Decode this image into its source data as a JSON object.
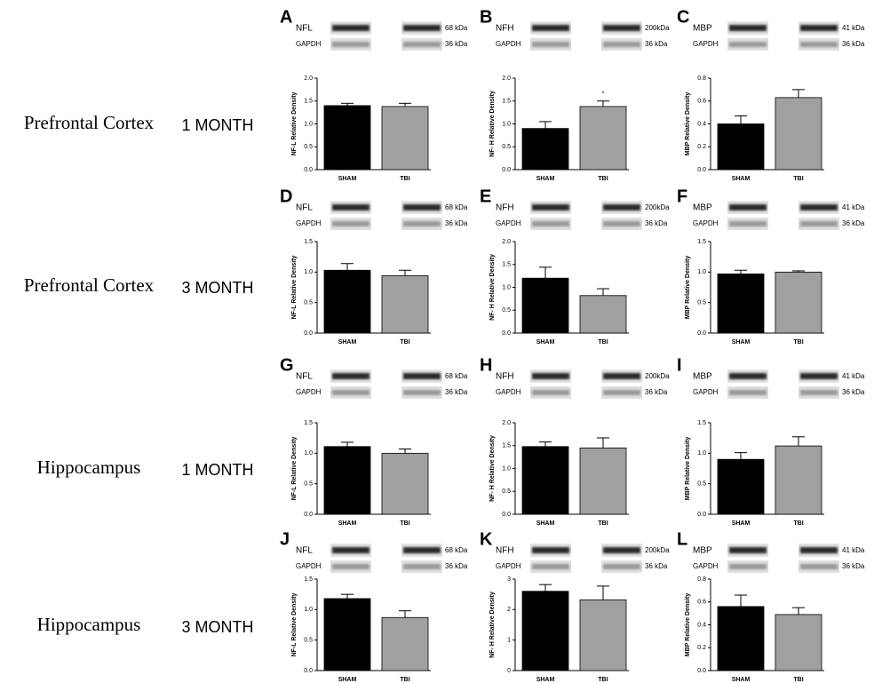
{
  "row_labels": [
    {
      "region": "Prefrontal Cortex",
      "time": "1 MONTH"
    },
    {
      "region": "Prefrontal Cortex",
      "time": "3 MONTH"
    },
    {
      "region": "Hippocampus",
      "time": "1 MONTH"
    },
    {
      "region": "Hippocampus",
      "time": "3 MONTH"
    }
  ],
  "chart_data": [
    {
      "type": "bar",
      "panel": "A",
      "blot": {
        "protein": "NFL",
        "protein_size": "68 kDa",
        "control": "GAPDH",
        "control_size": "36 kDa"
      },
      "ylabel": "NF-L Relative Density",
      "categories": [
        "SHAM",
        "TBI"
      ],
      "values": [
        1.4,
        1.38
      ],
      "errors": [
        0.05,
        0.07
      ],
      "colors": [
        "#000000",
        "#a0a0a0"
      ],
      "ylim": [
        0,
        2
      ],
      "yticks": [
        {
          "value": 0,
          "label": "0.0"
        },
        {
          "value": 0.5,
          "label": "0.5"
        },
        {
          "value": 1,
          "label": "1.0"
        },
        {
          "value": 1.5,
          "label": "1.5"
        },
        {
          "value": 2,
          "label": "2.0"
        }
      ]
    },
    {
      "type": "bar",
      "panel": "B",
      "blot": {
        "protein": "NFH",
        "protein_size": "200kDa",
        "control": "GAPDH",
        "control_size": "36 kDa"
      },
      "ylabel": "NF- H Relative Density",
      "categories": [
        "SHAM",
        "TBI"
      ],
      "values": [
        0.9,
        1.38
      ],
      "errors": [
        0.15,
        0.12
      ],
      "colors": [
        "#000000",
        "#a0a0a0"
      ],
      "significance": [
        null,
        "*"
      ],
      "ylim": [
        0,
        2
      ],
      "yticks": [
        {
          "value": 0,
          "label": "0.0"
        },
        {
          "value": 0.5,
          "label": "0.5"
        },
        {
          "value": 1,
          "label": "1.0"
        },
        {
          "value": 1.5,
          "label": "1.5"
        },
        {
          "value": 2,
          "label": "2.0"
        }
      ]
    },
    {
      "type": "bar",
      "panel": "C",
      "blot": {
        "protein": "MBP",
        "protein_size": "41 kDa",
        "control": "GAPDH",
        "control_size": "36 kDa"
      },
      "ylabel": "MBP Relative Density",
      "categories": [
        "SHAM",
        "TBI"
      ],
      "values": [
        0.4,
        0.63
      ],
      "errors": [
        0.07,
        0.07
      ],
      "colors": [
        "#000000",
        "#a0a0a0"
      ],
      "ylim": [
        0,
        0.8
      ],
      "yticks": [
        {
          "value": 0,
          "label": "0.0"
        },
        {
          "value": 0.2,
          "label": "0.2"
        },
        {
          "value": 0.4,
          "label": "0.4"
        },
        {
          "value": 0.6,
          "label": "0.6"
        },
        {
          "value": 0.8,
          "label": "0.8"
        }
      ]
    },
    {
      "type": "bar",
      "panel": "D",
      "blot": {
        "protein": "NFL",
        "protein_size": "68 kDa",
        "control": "GAPDH",
        "control_size": "36 kDa"
      },
      "ylabel": "NF-L Relative Density",
      "categories": [
        "SHAM",
        "TBI"
      ],
      "values": [
        1.03,
        0.94
      ],
      "errors": [
        0.11,
        0.09
      ],
      "colors": [
        "#000000",
        "#a0a0a0"
      ],
      "ylim": [
        0,
        1.5
      ],
      "yticks": [
        {
          "value": 0,
          "label": "0.0"
        },
        {
          "value": 0.5,
          "label": "0.5"
        },
        {
          "value": 1,
          "label": "1.0"
        },
        {
          "value": 1.5,
          "label": "1.5"
        }
      ]
    },
    {
      "type": "bar",
      "panel": "E",
      "blot": {
        "protein": "NFH",
        "protein_size": "200kDa",
        "control": "GAPDH",
        "control_size": "36 kDa"
      },
      "ylabel": "NF- H Relative Density",
      "categories": [
        "SHAM",
        "TBI"
      ],
      "values": [
        1.2,
        0.82
      ],
      "errors": [
        0.24,
        0.15
      ],
      "colors": [
        "#000000",
        "#a0a0a0"
      ],
      "ylim": [
        0,
        2
      ],
      "yticks": [
        {
          "value": 0,
          "label": "0.0"
        },
        {
          "value": 0.5,
          "label": "0.5"
        },
        {
          "value": 1,
          "label": "1.0"
        },
        {
          "value": 1.5,
          "label": "1.5"
        },
        {
          "value": 2,
          "label": "2.0"
        }
      ]
    },
    {
      "type": "bar",
      "panel": "F",
      "blot": {
        "protein": "MBP",
        "protein_size": "41 kDa",
        "control": "GAPDH",
        "control_size": "36 kDa"
      },
      "ylabel": "MBP Relative Density",
      "categories": [
        "SHAM",
        "TBI"
      ],
      "values": [
        0.97,
        1.0
      ],
      "errors": [
        0.06,
        0.02
      ],
      "colors": [
        "#000000",
        "#a0a0a0"
      ],
      "ylim": [
        0,
        1.5
      ],
      "yticks": [
        {
          "value": 0,
          "label": "0.0"
        },
        {
          "value": 0.5,
          "label": "0.5"
        },
        {
          "value": 1,
          "label": "1.0"
        },
        {
          "value": 1.5,
          "label": "1.5"
        }
      ]
    },
    {
      "type": "bar",
      "panel": "G",
      "blot": {
        "protein": "NFL",
        "protein_size": "68 kDa",
        "control": "GAPDH",
        "control_size": "36 kDa"
      },
      "ylabel": "NF-L Relative Density",
      "categories": [
        "SHAM",
        "TBI"
      ],
      "values": [
        1.11,
        1.0
      ],
      "errors": [
        0.07,
        0.07
      ],
      "colors": [
        "#000000",
        "#a0a0a0"
      ],
      "ylim": [
        0,
        1.5
      ],
      "yticks": [
        {
          "value": 0,
          "label": "0.0"
        },
        {
          "value": 0.5,
          "label": "0.5"
        },
        {
          "value": 1,
          "label": "1.0"
        },
        {
          "value": 1.5,
          "label": "1.5"
        }
      ]
    },
    {
      "type": "bar",
      "panel": "H",
      "blot": {
        "protein": "NFH",
        "protein_size": "200kDa",
        "control": "GAPDH",
        "control_size": "36 kDa"
      },
      "ylabel": "NF- H Relative Density",
      "categories": [
        "SHAM",
        "TBI"
      ],
      "values": [
        1.48,
        1.45
      ],
      "errors": [
        0.1,
        0.22
      ],
      "colors": [
        "#000000",
        "#a0a0a0"
      ],
      "ylim": [
        0,
        2
      ],
      "yticks": [
        {
          "value": 0,
          "label": "0.0"
        },
        {
          "value": 0.5,
          "label": "0.5"
        },
        {
          "value": 1,
          "label": "1.0"
        },
        {
          "value": 1.5,
          "label": "1.5"
        },
        {
          "value": 2,
          "label": "2.0"
        }
      ]
    },
    {
      "type": "bar",
      "panel": "I",
      "blot": {
        "protein": "MBP",
        "protein_size": "41 kDa",
        "control": "GAPDH",
        "control_size": "36 kDa"
      },
      "ylabel": "MBP Relative Density",
      "categories": [
        "SHAM",
        "TBI"
      ],
      "values": [
        0.9,
        1.12
      ],
      "errors": [
        0.11,
        0.15
      ],
      "colors": [
        "#000000",
        "#a0a0a0"
      ],
      "ylim": [
        0,
        1.5
      ],
      "yticks": [
        {
          "value": 0,
          "label": "0.0"
        },
        {
          "value": 0.5,
          "label": "0.5"
        },
        {
          "value": 1,
          "label": "1.0"
        },
        {
          "value": 1.5,
          "label": "1.5"
        }
      ]
    },
    {
      "type": "bar",
      "panel": "J",
      "blot": {
        "protein": "NFL",
        "protein_size": "68 kDa",
        "control": "GAPDH",
        "control_size": "36 kDa"
      },
      "ylabel": "NF-L Relative Density",
      "categories": [
        "SHAM",
        "TBI"
      ],
      "values": [
        1.18,
        0.87
      ],
      "errors": [
        0.07,
        0.11
      ],
      "colors": [
        "#000000",
        "#a0a0a0"
      ],
      "ylim": [
        0,
        1.5
      ],
      "yticks": [
        {
          "value": 0,
          "label": "0.0"
        },
        {
          "value": 0.5,
          "label": "0.5"
        },
        {
          "value": 1,
          "label": "1.0"
        },
        {
          "value": 1.5,
          "label": "1.5"
        }
      ]
    },
    {
      "type": "bar",
      "panel": "K",
      "blot": {
        "protein": "NFH",
        "protein_size": "200kDa",
        "control": "GAPDH",
        "control_size": "36 kDa"
      },
      "ylabel": "NF- H Relative Density",
      "categories": [
        "SHAM",
        "TBI"
      ],
      "values": [
        2.6,
        2.32
      ],
      "errors": [
        0.22,
        0.45
      ],
      "colors": [
        "#000000",
        "#a0a0a0"
      ],
      "ylim": [
        0,
        3
      ],
      "yticks": [
        0,
        1,
        2,
        3
      ]
    },
    {
      "type": "bar",
      "panel": "L",
      "blot": {
        "protein": "MBP",
        "protein_size": "41 kDa",
        "control": "GAPDH",
        "control_size": "36 kDa"
      },
      "ylabel": "MBP Relative Density",
      "categories": [
        "SHAM",
        "TBI"
      ],
      "values": [
        0.56,
        0.49
      ],
      "errors": [
        0.1,
        0.06
      ],
      "colors": [
        "#000000",
        "#a0a0a0"
      ],
      "ylim": [
        0,
        0.8
      ],
      "yticks": [
        {
          "value": 0,
          "label": "0.0"
        },
        {
          "value": 0.2,
          "label": "0.2"
        },
        {
          "value": 0.4,
          "label": "0.4"
        },
        {
          "value": 0.6,
          "label": "0.6"
        },
        {
          "value": 0.8,
          "label": "0.8"
        }
      ]
    }
  ]
}
